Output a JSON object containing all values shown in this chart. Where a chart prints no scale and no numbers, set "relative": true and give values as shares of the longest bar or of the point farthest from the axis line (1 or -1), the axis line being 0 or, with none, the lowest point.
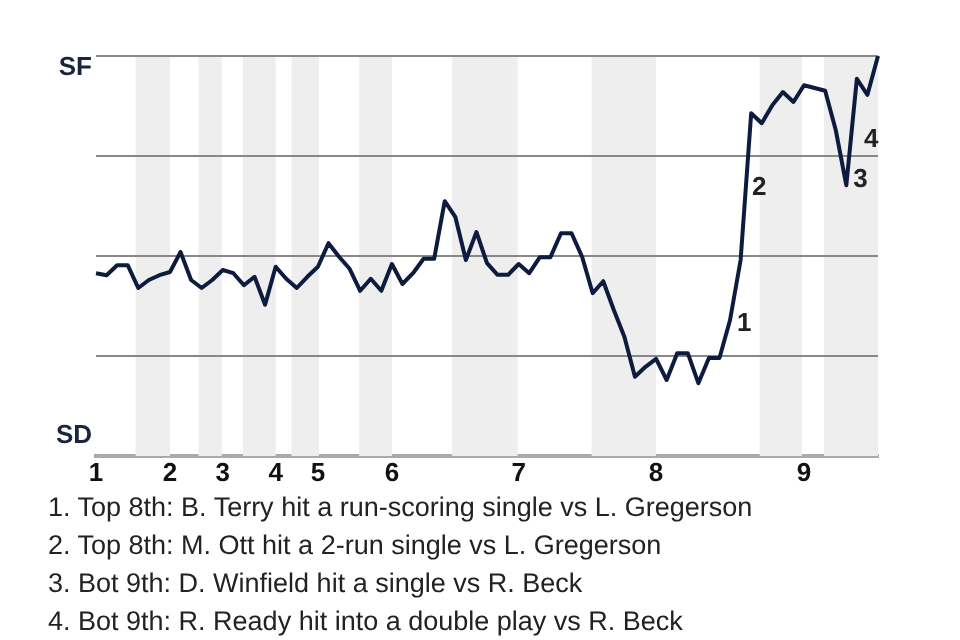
{
  "chart_data": {
    "type": "line",
    "relative": true,
    "categories": [
      "1",
      null,
      null,
      null,
      null,
      null,
      null,
      "2",
      null,
      null,
      null,
      null,
      "3",
      null,
      null,
      null,
      null,
      "4",
      null,
      null,
      null,
      "5",
      null,
      null,
      null,
      null,
      null,
      null,
      "6",
      null,
      null,
      null,
      null,
      null,
      null,
      null,
      null,
      null,
      null,
      null,
      "7",
      null,
      null,
      null,
      null,
      null,
      null,
      null,
      null,
      null,
      null,
      null,
      null,
      "8",
      null,
      null,
      null,
      null,
      null,
      null,
      null,
      null,
      null,
      null,
      null,
      null,
      null,
      "9",
      null,
      null,
      null,
      null,
      null,
      null,
      null
    ],
    "series": [
      {
        "color": "#0d1b3e",
        "values": [
          0.457,
          0.452,
          0.477,
          0.477,
          0.42,
          0.44,
          0.452,
          0.46,
          0.51,
          0.44,
          0.42,
          0.44,
          0.465,
          0.457,
          0.427,
          0.448,
          0.378,
          0.473,
          0.443,
          0.42,
          0.448,
          0.473,
          0.532,
          0.498,
          0.468,
          0.413,
          0.443,
          0.413,
          0.48,
          0.43,
          0.457,
          0.493,
          0.493,
          0.637,
          0.598,
          0.49,
          0.56,
          0.482,
          0.453,
          0.453,
          0.48,
          0.457,
          0.497,
          0.497,
          0.557,
          0.557,
          0.498,
          0.407,
          0.437,
          0.365,
          0.298,
          0.198,
          0.223,
          0.243,
          0.19,
          0.257,
          0.257,
          0.182,
          0.245,
          0.245,
          0.34,
          0.49,
          0.857,
          0.832,
          0.877,
          0.91,
          0.885,
          0.927,
          0.92,
          0.913,
          0.815,
          0.677,
          0.943,
          0.903,
          1.0
        ]
      }
    ],
    "marker": "none",
    "ref_lines": [
      {
        "axis": "y",
        "value": 0.25,
        "color": "#888888"
      },
      {
        "axis": "y",
        "value": 0.5,
        "color": "#888888"
      },
      {
        "axis": "y",
        "value": 0.75,
        "color": "#888888"
      },
      {
        "axis": "y",
        "value": 1,
        "color": "#888888"
      }
    ],
    "annotations": [
      "1",
      "2",
      "3",
      "4",
      "SF",
      "SD",
      "1. Top 8th: B. Terry hit a run-scoring single vs L. Gregerson",
      "2. Top 8th: M. Ott hit a 2-run single vs L. Gregerson",
      "3. Bot 9th: D. Winfield hit a single vs R. Beck",
      "4. Bot 9th: R. Ready hit into a double play vs R. Beck"
    ]
  }
}
